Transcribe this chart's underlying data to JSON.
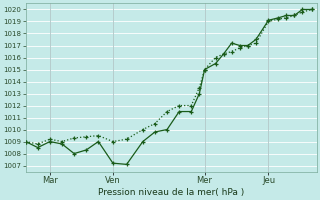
{
  "xlabel": "Pression niveau de la mer( hPa )",
  "background_color": "#c5eae8",
  "grid_color": "#ffffff",
  "line_color": "#1a5c1a",
  "ylim": [
    1006.5,
    1020.5
  ],
  "yticks": [
    1007,
    1008,
    1009,
    1010,
    1011,
    1012,
    1013,
    1014,
    1015,
    1016,
    1017,
    1018,
    1019,
    1020
  ],
  "xtick_labels": [
    "Mar",
    "Ven",
    "Mer",
    "Jeu"
  ],
  "xlim_days": [
    0,
    7.2
  ],
  "series1_x": [
    0.0,
    0.3,
    0.6,
    0.9,
    1.2,
    1.5,
    1.8,
    2.16,
    2.5,
    2.9,
    3.2,
    3.5,
    3.8,
    4.1,
    4.3,
    4.43,
    4.7,
    4.9,
    5.1,
    5.3,
    5.5,
    5.7,
    6.01,
    6.25,
    6.45,
    6.65,
    6.85,
    7.1
  ],
  "series1_y": [
    1009.0,
    1008.5,
    1009.0,
    1008.8,
    1008.0,
    1008.3,
    1009.0,
    1007.2,
    1007.1,
    1009.0,
    1009.8,
    1010.0,
    1011.5,
    1011.5,
    1013.0,
    1015.0,
    1015.5,
    1016.3,
    1017.2,
    1017.0,
    1017.0,
    1017.5,
    1019.1,
    1019.3,
    1019.5,
    1019.5,
    1020.0,
    1020.0
  ],
  "series2_x": [
    0.0,
    0.3,
    0.6,
    0.9,
    1.2,
    1.5,
    1.8,
    2.16,
    2.5,
    2.9,
    3.2,
    3.5,
    3.8,
    4.1,
    4.3,
    4.43,
    4.7,
    4.9,
    5.1,
    5.3,
    5.5,
    5.7,
    6.01,
    6.25,
    6.45,
    6.65,
    6.85,
    7.1
  ],
  "series2_y": [
    1009.0,
    1008.8,
    1009.2,
    1009.0,
    1009.3,
    1009.4,
    1009.5,
    1009.0,
    1009.2,
    1010.0,
    1010.5,
    1011.5,
    1012.0,
    1012.0,
    1013.5,
    1015.0,
    1016.0,
    1016.3,
    1016.5,
    1016.8,
    1017.0,
    1017.2,
    1019.0,
    1019.2,
    1019.3,
    1019.5,
    1019.8,
    1020.0
  ],
  "vline_positions": [
    0.6,
    2.16,
    4.43,
    6.01
  ],
  "fig_width": 3.2,
  "fig_height": 2.0,
  "dpi": 100
}
